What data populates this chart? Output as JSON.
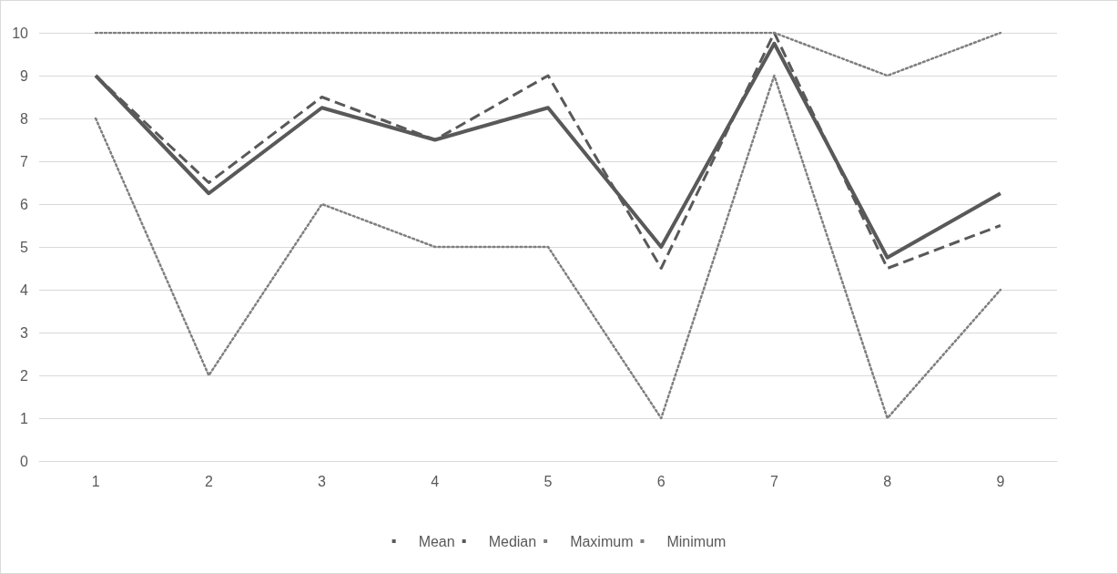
{
  "chart_data": {
    "type": "line",
    "categories": [
      "1",
      "2",
      "3",
      "4",
      "5",
      "6",
      "7",
      "8",
      "9"
    ],
    "series": [
      {
        "name": "Mean",
        "color": "#595959",
        "line_style": "solid",
        "values": [
          9,
          6.25,
          8.25,
          7.5,
          8.25,
          5,
          9.75,
          4.75,
          6.25
        ]
      },
      {
        "name": "Median",
        "color": "#595959",
        "line_style": "dashed",
        "values": [
          9,
          6.5,
          8.5,
          7.5,
          9,
          4.5,
          10,
          4.5,
          5.5
        ]
      },
      {
        "name": "Maximum",
        "color": "#7f7f7f",
        "line_style": "dotted",
        "values": [
          10,
          10,
          10,
          10,
          10,
          10,
          10,
          9,
          10
        ]
      },
      {
        "name": "Minimum",
        "color": "#7f7f7f",
        "line_style": "dotted",
        "values": [
          8,
          2,
          6,
          5,
          5,
          1,
          9,
          1,
          4
        ]
      }
    ],
    "ylim": [
      0,
      10
    ],
    "yticks": [
      0,
      1,
      2,
      3,
      4,
      5,
      6,
      7,
      8,
      9,
      10
    ],
    "grid": "y",
    "legend": "bottom",
    "marker": "none"
  }
}
